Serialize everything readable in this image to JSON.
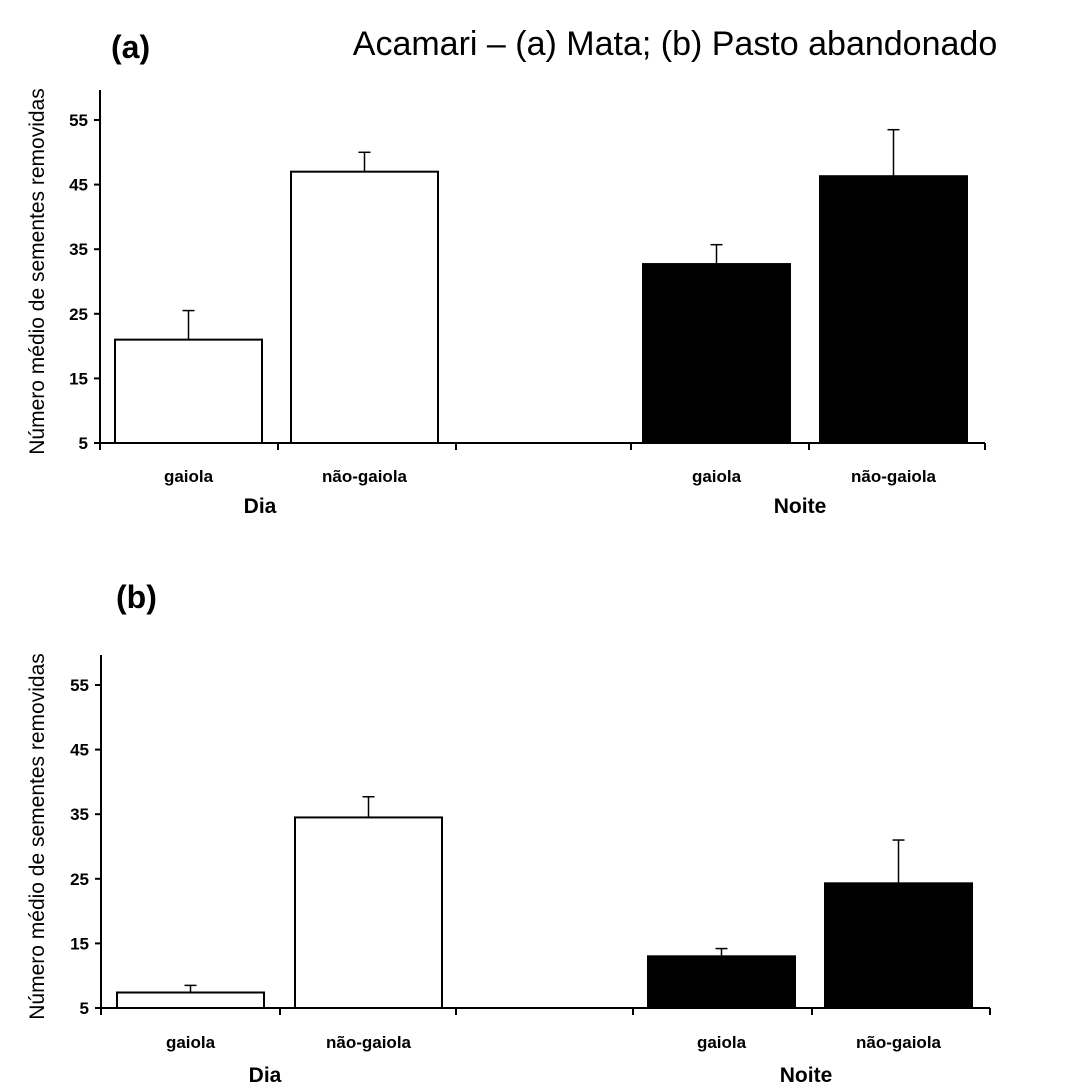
{
  "title": "Acamari – (a) Mata; (b) Pasto abandonado",
  "chart_data": [
    {
      "type": "bar",
      "panel_label": "(a)",
      "ylabel": "Número médio de sementes removidas",
      "ylim": [
        5,
        60
      ],
      "yticks": [
        5,
        15,
        25,
        35,
        45,
        55
      ],
      "grid": false,
      "groups": [
        {
          "name": "Dia",
          "color": "#ffffff",
          "bars": [
            {
              "category": "gaiola",
              "value": 21,
              "error": 4.5
            },
            {
              "category": "não-gaiola",
              "value": 47,
              "error": 3
            }
          ]
        },
        {
          "name": "Noite",
          "color": "#000000",
          "bars": [
            {
              "category": "gaiola",
              "value": 32.7,
              "error": 3
            },
            {
              "category": "não-gaiola",
              "value": 46.3,
              "error": 7.2
            }
          ]
        }
      ]
    },
    {
      "type": "bar",
      "panel_label": "(b)",
      "ylabel": "Número médio de sementes removidas",
      "ylim": [
        5,
        60
      ],
      "yticks": [
        5,
        15,
        25,
        35,
        45,
        55
      ],
      "grid": false,
      "groups": [
        {
          "name": "Dia",
          "color": "#ffffff",
          "bars": [
            {
              "category": "gaiola",
              "value": 7.4,
              "error": 1.1
            },
            {
              "category": "não-gaiola",
              "value": 34.5,
              "error": 3.2
            }
          ]
        },
        {
          "name": "Noite",
          "color": "#000000",
          "bars": [
            {
              "category": "gaiola",
              "value": 13,
              "error": 1.2
            },
            {
              "category": "não-gaiola",
              "value": 24.3,
              "error": 6.7
            }
          ]
        }
      ]
    }
  ]
}
